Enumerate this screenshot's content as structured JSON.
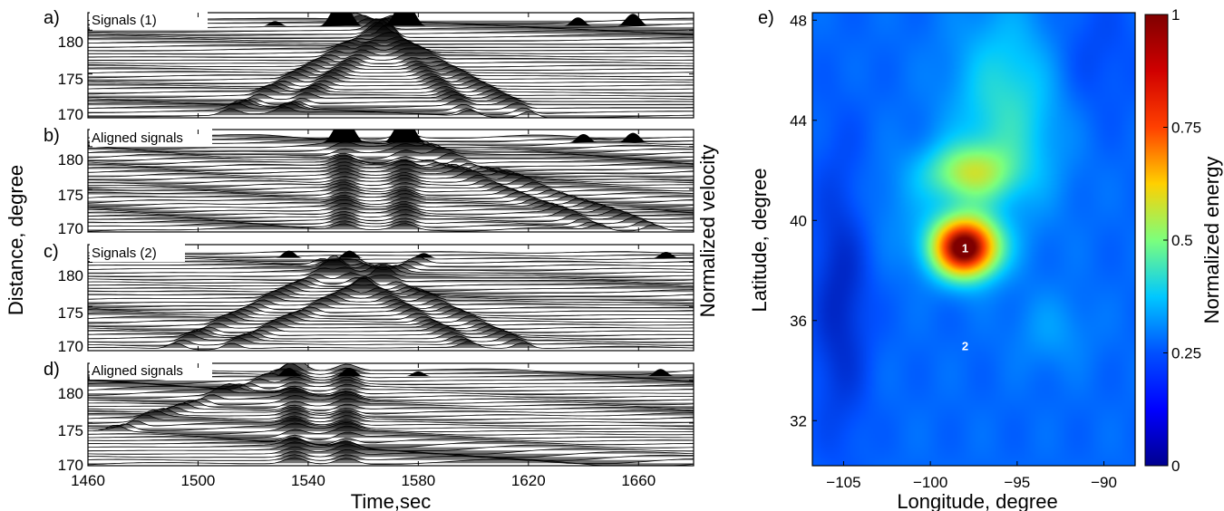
{
  "chart_data": [
    {
      "type": "wiggle",
      "panel_label": "a)",
      "title": "Signals (1)",
      "ylabel": "Distance, degree",
      "yticks": [
        "180",
        "175",
        "170"
      ],
      "ylim": [
        170,
        182
      ],
      "xlim": [
        1460,
        1680
      ],
      "features": [
        {
          "kind": "moveout",
          "x_start": 1510,
          "dist_start": 170,
          "x_end": 1578,
          "dist_end": 182
        },
        {
          "kind": "moveout",
          "x_start": 1530,
          "dist_start": 170,
          "x_end": 1568,
          "dist_end": 179
        },
        {
          "kind": "moveout",
          "x_start": 1622,
          "dist_start": 170,
          "x_end": 1552,
          "dist_end": 182
        },
        {
          "kind": "moveout",
          "x_start": 1600,
          "dist_start": 170,
          "x_end": 1568,
          "dist_end": 179
        }
      ],
      "peaks": [
        {
          "time": 1552,
          "height": 1.0
        },
        {
          "time": 1575,
          "height": 1.0
        },
        {
          "time": 1638,
          "height": 0.35
        },
        {
          "time": 1658,
          "height": 0.5
        },
        {
          "time": 1485,
          "height": 0.15
        },
        {
          "time": 1528,
          "height": 0.2
        }
      ]
    },
    {
      "type": "wiggle",
      "panel_label": "b)",
      "title": "Aligned signals",
      "yticks": [
        "180",
        "175",
        "170"
      ],
      "ylim": [
        170,
        182
      ],
      "xlim": [
        1460,
        1680
      ],
      "features": [
        {
          "kind": "vertical",
          "time": 1553,
          "dist_start": 170,
          "dist_end": 182
        },
        {
          "kind": "vertical",
          "time": 1575,
          "dist_start": 170,
          "dist_end": 182
        },
        {
          "kind": "moveout",
          "x_start": 1578,
          "dist_start": 180,
          "x_end": 1668,
          "dist_end": 170
        },
        {
          "kind": "moveout",
          "x_start": 1585,
          "dist_start": 178,
          "x_end": 1648,
          "dist_end": 170
        }
      ],
      "peaks": [
        {
          "time": 1553,
          "height": 1.0
        },
        {
          "time": 1575,
          "height": 1.0
        },
        {
          "time": 1640,
          "height": 0.35
        },
        {
          "time": 1658,
          "height": 0.4
        },
        {
          "time": 1490,
          "height": 0.15
        }
      ]
    },
    {
      "type": "wiggle",
      "panel_label": "c)",
      "title": "Signals (2)",
      "yticks": [
        "180",
        "175",
        "170"
      ],
      "ylim": [
        170,
        182
      ],
      "xlim": [
        1460,
        1680
      ],
      "features": [
        {
          "kind": "moveout",
          "x_start": 1490,
          "dist_start": 170,
          "x_end": 1555,
          "dist_end": 180
        },
        {
          "kind": "moveout",
          "x_start": 1620,
          "dist_start": 170,
          "x_end": 1555,
          "dist_end": 180
        },
        {
          "kind": "moveout",
          "x_start": 1510,
          "dist_start": 170,
          "x_end": 1580,
          "dist_end": 180
        },
        {
          "kind": "moveout",
          "x_start": 1600,
          "dist_start": 170,
          "x_end": 1545,
          "dist_end": 180
        }
      ],
      "peaks": [
        {
          "time": 1470,
          "height": 0.25
        },
        {
          "time": 1533,
          "height": 0.3
        },
        {
          "time": 1555,
          "height": 0.3
        },
        {
          "time": 1582,
          "height": 0.2
        },
        {
          "time": 1670,
          "height": 0.25
        }
      ]
    },
    {
      "type": "wiggle",
      "panel_label": "d)",
      "title": "Aligned signals",
      "xlabel": "Time,sec",
      "xticks": [
        1460,
        1500,
        1540,
        1580,
        1620,
        1660
      ],
      "yticks": [
        "180",
        "175",
        "170"
      ],
      "ylim": [
        170,
        182
      ],
      "xlim": [
        1460,
        1680
      ],
      "features": [
        {
          "kind": "vertical",
          "time": 1535,
          "dist_start": 170,
          "dist_end": 181
        },
        {
          "kind": "vertical",
          "time": 1554,
          "dist_start": 170,
          "dist_end": 181
        },
        {
          "kind": "moveout",
          "x_start": 1470,
          "dist_start": 174,
          "x_end": 1535,
          "dist_end": 181
        }
      ],
      "peaks": [
        {
          "time": 1470,
          "height": 0.25
        },
        {
          "time": 1533,
          "height": 0.35
        },
        {
          "time": 1555,
          "height": 0.35
        },
        {
          "time": 1580,
          "height": 0.2
        },
        {
          "time": 1668,
          "height": 0.3
        }
      ]
    },
    {
      "type": "heatmap",
      "panel_label": "e)",
      "xlabel": "Longitude, degree",
      "ylabel": "Latitude, degree",
      "xticks": [
        "−105",
        "−100",
        "−95",
        "−90"
      ],
      "xtick_values": [
        -105,
        -100,
        -95,
        -90
      ],
      "yticks": [
        "48",
        "44",
        "40",
        "36",
        "32"
      ],
      "ytick_values": [
        48,
        44,
        40,
        36,
        32
      ],
      "xlim": [
        -106.8,
        -88.2
      ],
      "ylim": [
        30.2,
        48.3
      ],
      "colorbar": {
        "label": "Normalized energy",
        "ticks": [
          "1",
          "0.75",
          "0.5",
          "0.25",
          "0"
        ],
        "tick_values": [
          1,
          0.75,
          0.5,
          0.25,
          0
        ],
        "colormap": [
          "#00008f",
          "#0050ff",
          "#00c8ff",
          "#7cff7c",
          "#ffd000",
          "#ff4000",
          "#7f0000"
        ]
      },
      "background_energy": 0.2,
      "blobs": [
        {
          "lon": -98.0,
          "lat": 38.9,
          "sx": 1.35,
          "sy": 0.85,
          "energy": 0.85
        },
        {
          "lon": -97.8,
          "lat": 41.9,
          "sx": 1.8,
          "sy": 0.8,
          "energy": 0.3
        },
        {
          "lon": -95.5,
          "lat": 44.5,
          "sx": 2.3,
          "sy": 2.8,
          "energy": 0.2
        },
        {
          "lon": -93.0,
          "lat": 35.6,
          "sx": 1.6,
          "sy": 1.1,
          "energy": 0.07
        },
        {
          "lon": -101.0,
          "lat": 40.5,
          "sx": 2.5,
          "sy": 1.5,
          "energy": 0.05
        },
        {
          "lon": -105.2,
          "lat": 37.0,
          "sx": 1.2,
          "sy": 4.0,
          "energy": -0.12
        },
        {
          "lon": -91.0,
          "lat": 46.5,
          "sx": 2.0,
          "sy": 2.0,
          "energy": -0.06
        }
      ],
      "markers": [
        {
          "label": "1",
          "lon": -98.0,
          "lat": 38.9
        },
        {
          "label": "2",
          "lon": -98.0,
          "lat": 35.0
        }
      ]
    }
  ],
  "shared": {
    "ylabel_left": "Distance, degree",
    "ylabel_right": "Normalized velocity"
  }
}
